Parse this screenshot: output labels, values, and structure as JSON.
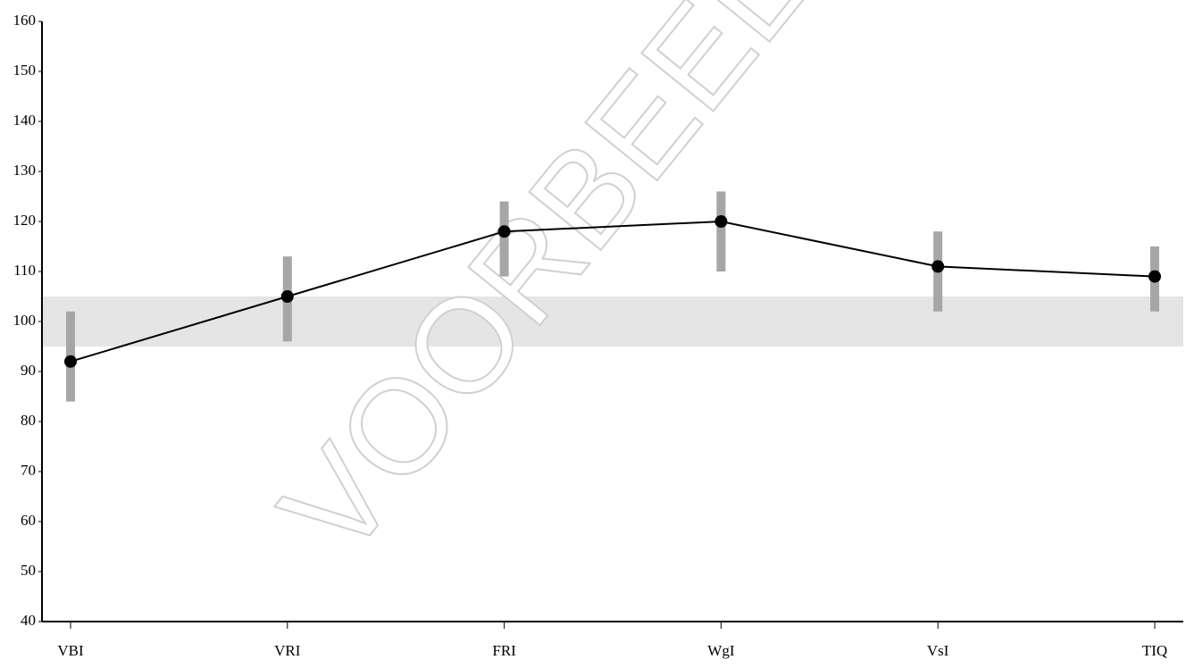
{
  "chart_data": {
    "type": "line",
    "categories": [
      "VBI",
      "VRI",
      "FRI",
      "WgI",
      "VsI",
      "TIQ"
    ],
    "values": [
      92,
      105,
      118,
      120,
      111,
      109
    ],
    "ci_low": [
      84,
      96,
      109,
      110,
      102,
      102
    ],
    "ci_high": [
      102,
      113,
      124,
      126,
      118,
      115
    ],
    "color": "#000000",
    "ci_color": "#a6a6a6",
    "reference_band": [
      95,
      105
    ],
    "band_color": "#e5e5e5",
    "ylim": [
      40,
      160
    ],
    "yticks": [
      40,
      50,
      60,
      70,
      80,
      90,
      100,
      110,
      120,
      130,
      140,
      150,
      160
    ],
    "watermark": "VOORBEELD"
  }
}
